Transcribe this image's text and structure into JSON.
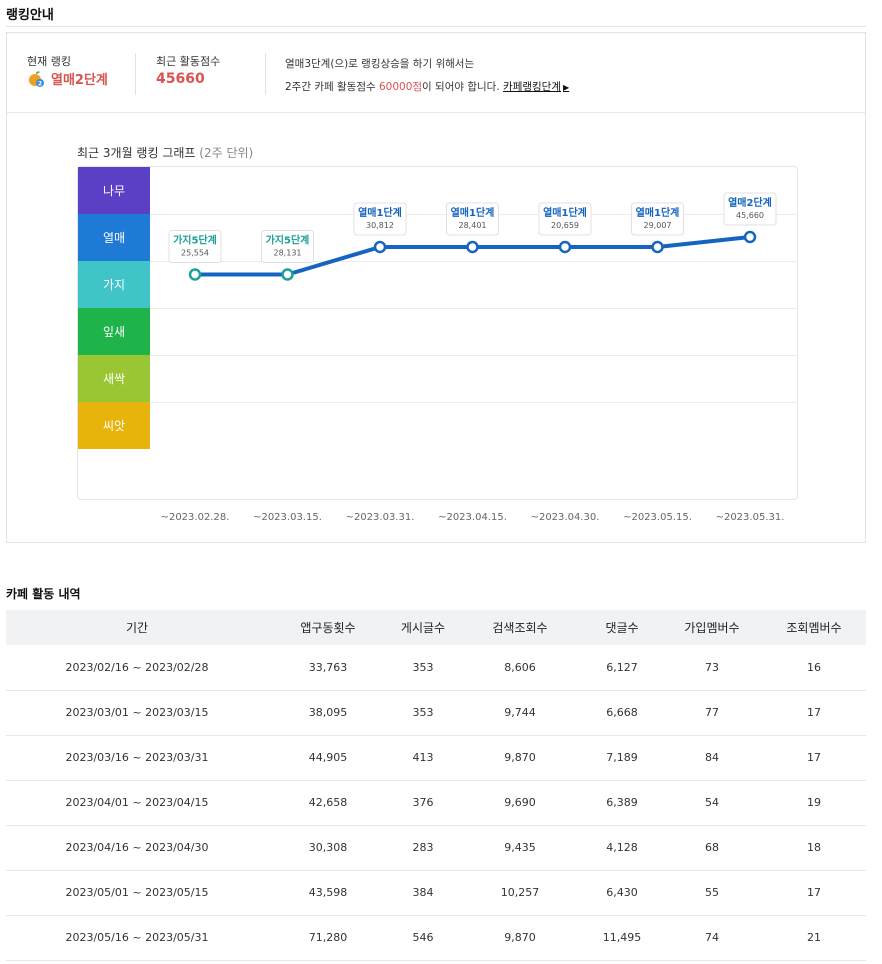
{
  "page": {
    "title": "랭킹안내"
  },
  "ranking_info": {
    "current_rank_label": "현재 랭킹",
    "current_rank_value": "열매2단계",
    "recent_score_label": "최근 활동점수",
    "recent_score_value": "45660",
    "message_line1": "열매3단계(으)로 랭킹상승을 하기 위해서는",
    "message_line2_pre": "2주간 카페 활동점수 ",
    "message_required": "60000점",
    "message_line2_post": "이 되어야 합니다.",
    "rank_steps_link": "카페랭킹단계"
  },
  "chart_title_main": "최근 3개월 랭킹 그래프",
  "chart_title_sub": "(2주 단위)",
  "chart_data": {
    "type": "line",
    "title": "최근 3개월 랭킹 그래프 (2주 단위)",
    "categories": [
      "~2023.02.28.",
      "~2023.03.15.",
      "~2023.03.31.",
      "~2023.04.15.",
      "~2023.04.30.",
      "~2023.05.15.",
      "~2023.05.31."
    ],
    "series": [
      {
        "values": [
          25554,
          28131,
          30812,
          28401,
          20659,
          29007,
          45660
        ]
      }
    ],
    "point_labels": [
      "가지5단계",
      "가지5단계",
      "열매1단계",
      "열매1단계",
      "열매1단계",
      "열매1단계",
      "열매2단계"
    ],
    "point_value_labels": [
      "25,554",
      "28,131",
      "30,812",
      "28,401",
      "20,659",
      "29,007",
      "45,660"
    ],
    "rank_levels": [
      0,
      0,
      1,
      1,
      1,
      1,
      2
    ],
    "bands": [
      {
        "label": "나무",
        "color": "#5b3fc4"
      },
      {
        "label": "열매",
        "color": "#1f7ad6"
      },
      {
        "label": "가지",
        "color": "#3fc5c8"
      },
      {
        "label": "잎새",
        "color": "#1eb44a"
      },
      {
        "label": "새싹",
        "color": "#9ac634"
      },
      {
        "label": "씨앗",
        "color": "#e7b40c"
      }
    ],
    "line_color": "#1565c0",
    "label_colors": {
      "가지": "#1aa198",
      "열매": "#1565c0"
    }
  },
  "activity": {
    "title": "카페 활동 내역",
    "columns": [
      "기간",
      "앱구동횟수",
      "게시글수",
      "검색조회수",
      "댓글수",
      "가입멤버수",
      "조회멤버수"
    ],
    "rows": [
      [
        "2023/02/16 ~ 2023/02/28",
        "33,763",
        "353",
        "8,606",
        "6,127",
        "73",
        "16"
      ],
      [
        "2023/03/01 ~ 2023/03/15",
        "38,095",
        "353",
        "9,744",
        "6,668",
        "77",
        "17"
      ],
      [
        "2023/03/16 ~ 2023/03/31",
        "44,905",
        "413",
        "9,870",
        "7,189",
        "84",
        "17"
      ],
      [
        "2023/04/01 ~ 2023/04/15",
        "42,658",
        "376",
        "9,690",
        "6,389",
        "54",
        "19"
      ],
      [
        "2023/04/16 ~ 2023/04/30",
        "30,308",
        "283",
        "9,435",
        "4,128",
        "68",
        "18"
      ],
      [
        "2023/05/01 ~ 2023/05/15",
        "43,598",
        "384",
        "10,257",
        "6,430",
        "55",
        "17"
      ],
      [
        "2023/05/16 ~ 2023/05/31",
        "71,280",
        "546",
        "9,870",
        "11,495",
        "74",
        "21"
      ]
    ]
  }
}
